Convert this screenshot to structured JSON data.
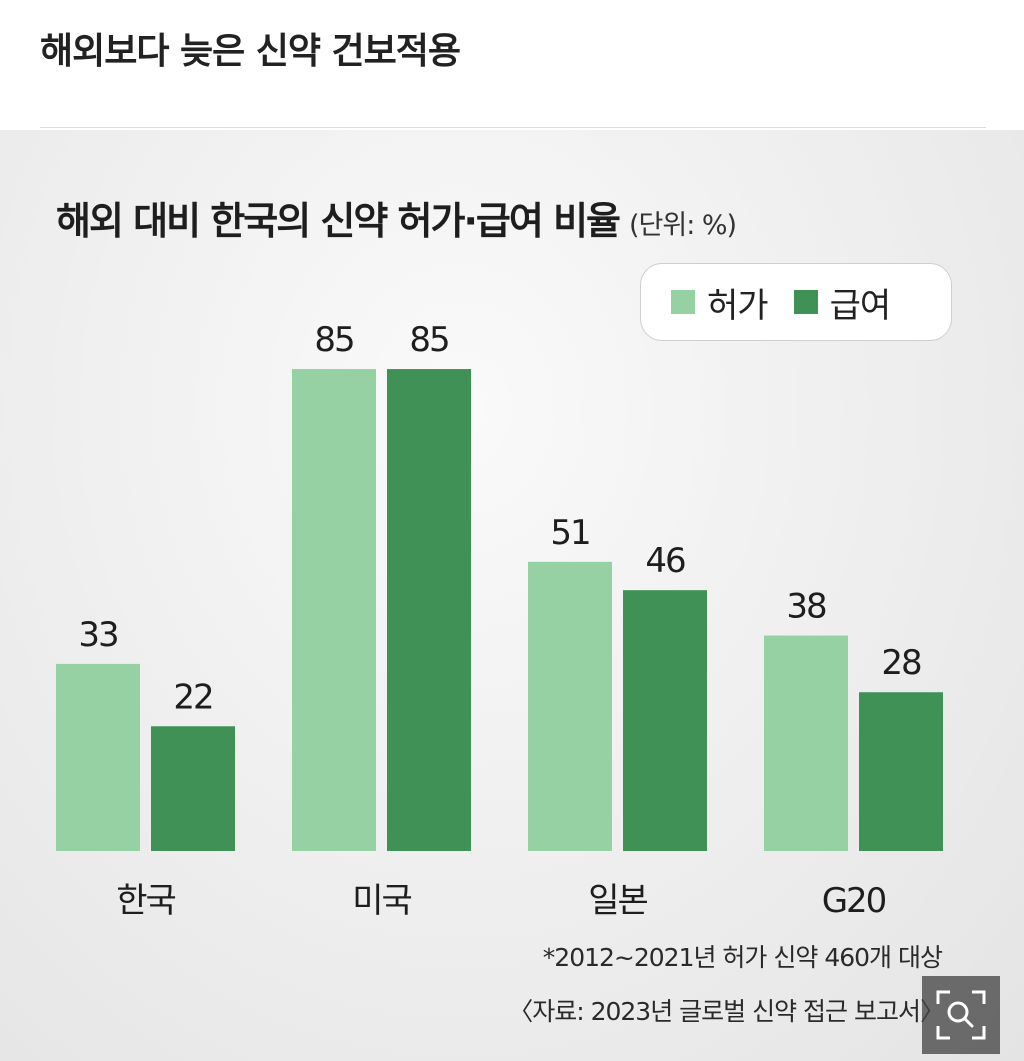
{
  "page": {
    "title": "해외보다 늦은 신약 건보적용"
  },
  "colors": {
    "approval": "#96d1a3",
    "coverage": "#3f9155",
    "panel_background": "#ececec"
  },
  "chart_data": {
    "type": "bar",
    "title": "해외 대비 한국의 신약 허가·급여 비율",
    "unit_label": "(단위: %)",
    "categories": [
      "한국",
      "미국",
      "일본",
      "G20"
    ],
    "series": [
      {
        "name": "허가",
        "values": [
          33,
          85,
          51,
          38
        ],
        "color": "#96d1a3"
      },
      {
        "name": "급여",
        "values": [
          22,
          85,
          46,
          28
        ],
        "color": "#3f9155"
      }
    ],
    "ylim": [
      0,
      100
    ],
    "grid": false,
    "legend_position": "top-right",
    "data_labels": true,
    "footnote": "*2012~2021년 허가 신약 460개 대상",
    "source": "〈자료: 2023년 글로벌 신약 접근 보고서〉"
  },
  "toolbar": {
    "zoom_icon": "zoom-icon"
  }
}
